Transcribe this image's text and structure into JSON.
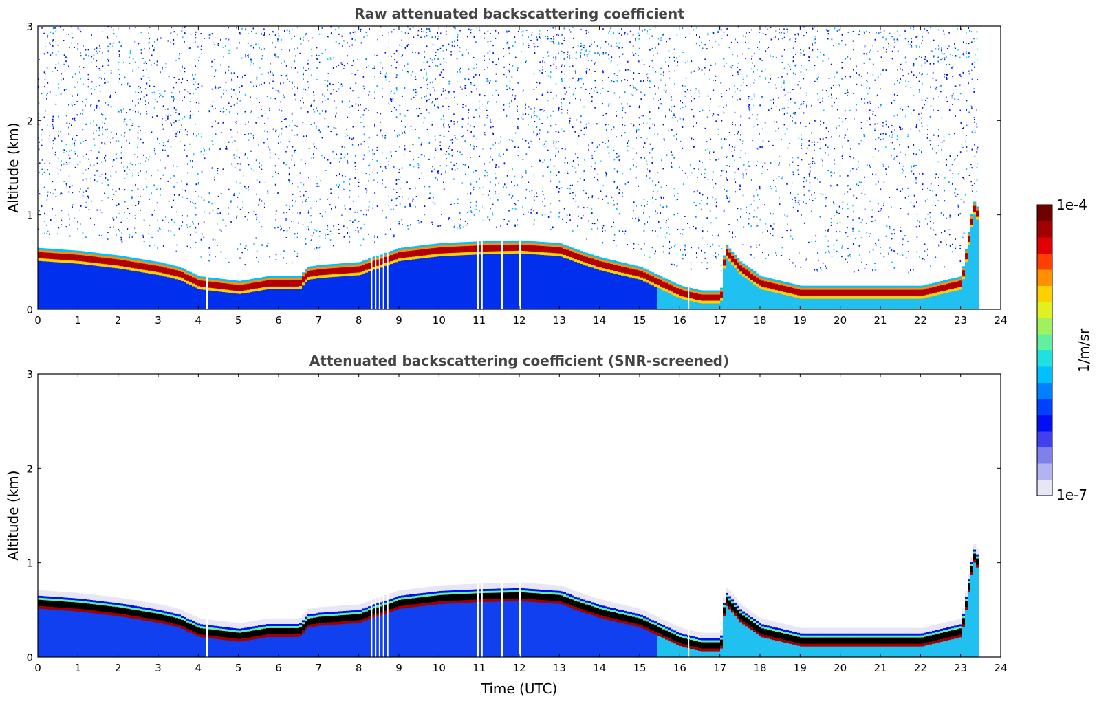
{
  "chart_data": [
    {
      "type": "heatmap",
      "title": "Raw attenuated backscattering coefficient",
      "xlabel": "",
      "ylabel": "Altitude (km)",
      "xlim": [
        0,
        24
      ],
      "ylim": [
        0,
        3
      ],
      "xticks": [
        "0",
        "1",
        "2",
        "3",
        "4",
        "5",
        "6",
        "7",
        "8",
        "9",
        "10",
        "11",
        "12",
        "13",
        "14",
        "15",
        "16",
        "17",
        "18",
        "19",
        "20",
        "21",
        "22",
        "23",
        "24"
      ],
      "yticks": [
        "0",
        "1",
        "2",
        "3"
      ],
      "data_end_time": 23.5,
      "gaps": [
        4.2,
        8.3,
        8.4,
        8.5,
        8.6,
        8.7,
        10.95,
        11.05,
        11.55,
        12.0,
        16.2
      ],
      "layer_top_profile_km": {
        "time": [
          0,
          1,
          2,
          3,
          3.5,
          4,
          5,
          5.7,
          6.5,
          6.7,
          7,
          8,
          8.3,
          9,
          10,
          11,
          12,
          13,
          13.5,
          14,
          15,
          16,
          16.5,
          17,
          17.1,
          17.5,
          18,
          19,
          20,
          21,
          22,
          23,
          23.3,
          23.5
        ],
        "height": [
          0.65,
          0.62,
          0.57,
          0.5,
          0.45,
          0.35,
          0.3,
          0.35,
          0.35,
          0.45,
          0.47,
          0.5,
          0.55,
          0.65,
          0.7,
          0.72,
          0.73,
          0.7,
          0.62,
          0.55,
          0.45,
          0.25,
          0.2,
          0.2,
          0.7,
          0.5,
          0.35,
          0.25,
          0.25,
          0.25,
          0.25,
          0.35,
          1.15,
          1.0
        ]
      },
      "noise": "high above layer up to 3 km"
    },
    {
      "type": "heatmap",
      "title": "Attenuated backscattering coefficient (SNR-screened)",
      "xlabel": "Time (UTC)",
      "ylabel": "Altitude (km)",
      "xlim": [
        0,
        24
      ],
      "ylim": [
        0,
        3
      ],
      "xticks": [
        "0",
        "1",
        "2",
        "3",
        "4",
        "5",
        "6",
        "7",
        "8",
        "9",
        "10",
        "11",
        "12",
        "13",
        "14",
        "15",
        "16",
        "17",
        "18",
        "19",
        "20",
        "21",
        "22",
        "23",
        "24"
      ],
      "yticks": [
        "0",
        "1",
        "2",
        "3"
      ],
      "data_end_time": 23.5,
      "noise": "screened (removed)"
    }
  ],
  "colorbar": {
    "label": "1/m/sr",
    "max_label": "1e-4",
    "min_label": "1e-7",
    "colors": [
      "#e6e6f5",
      "#b3b3ef",
      "#8080ea",
      "#4040ee",
      "#0010f0",
      "#0040ff",
      "#0080ff",
      "#00c0ff",
      "#20e0e0",
      "#60f0a0",
      "#a0f060",
      "#e0f020",
      "#ffd000",
      "#ff9000",
      "#ff4000",
      "#e00000",
      "#a00000",
      "#700000"
    ]
  }
}
